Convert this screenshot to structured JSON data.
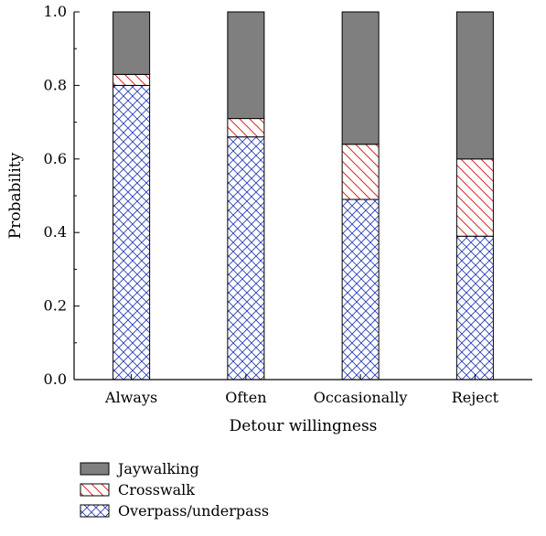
{
  "chart_data": {
    "type": "bar",
    "stacked": true,
    "categories": [
      "Always",
      "Often",
      "Occasionally",
      "Reject"
    ],
    "series": [
      {
        "name": "Overpass/underpass",
        "values": [
          0.8,
          0.66,
          0.49,
          0.39
        ],
        "pattern": "crosshatch",
        "color": "#2b3fb8"
      },
      {
        "name": "Crosswalk",
        "values": [
          0.03,
          0.05,
          0.15,
          0.21
        ],
        "pattern": "diagonal",
        "color": "#e0262a"
      },
      {
        "name": "Jaywalking",
        "values": [
          0.17,
          0.29,
          0.36,
          0.4
        ],
        "pattern": "solid",
        "color": "#7f7f7f"
      }
    ],
    "xlabel": "Detour willingness",
    "ylabel": "Probability",
    "ylim": [
      0,
      1.0
    ],
    "yticks": [
      "0.0",
      "0.2",
      "0.4",
      "0.6",
      "0.8",
      "1.0"
    ],
    "grid": false,
    "legend_position": "bottom-left",
    "legend_order": [
      "Jaywalking",
      "Crosswalk",
      "Overpass/underpass"
    ]
  }
}
